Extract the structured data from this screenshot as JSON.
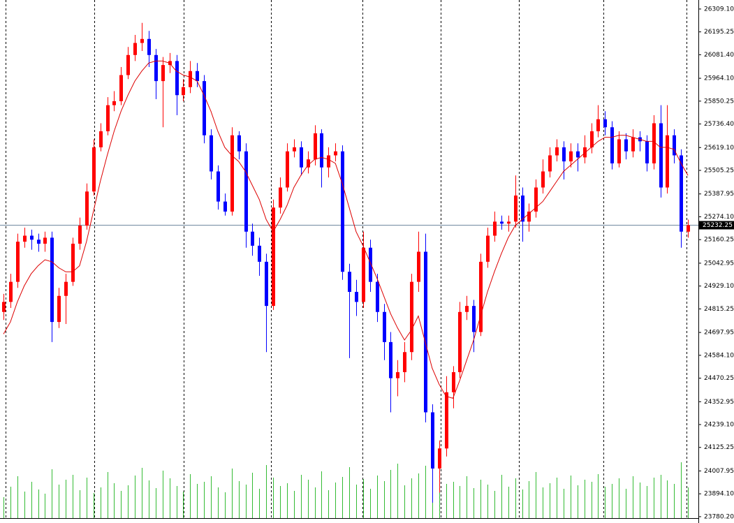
{
  "chart_data": {
    "type": "candlestick",
    "up_color": "#ff0000",
    "down_color": "#0000ff",
    "volume_color": "#33bb33",
    "ylim": [
      23773,
      26354
    ],
    "yticks": [
      {
        "value": 26309.1,
        "label": "26309.10"
      },
      26195.25,
      {
        "value": 26081.4,
        "label": "26081.40"
      },
      {
        "value": 25964.1,
        "label": "25964.10"
      },
      25850.25,
      {
        "value": 25736.4,
        "label": "25736.40"
      },
      {
        "value": 25619.1,
        "label": "25619.10"
      },
      25505.25,
      25387.95,
      {
        "value": 25274.1,
        "label": "25274.10"
      },
      25160.25,
      25042.95,
      {
        "value": 24929.1,
        "label": "24929.10"
      },
      24815.25,
      24697.95,
      {
        "value": 24584.1,
        "label": "24584.10"
      },
      24470.25,
      24352.95,
      {
        "value": 24239.1,
        "label": "24239.10"
      },
      24125.25,
      24007.95,
      {
        "value": 23894.1,
        "label": "23894.10"
      },
      {
        "value": 23780.2,
        "label": "23780.20"
      }
    ],
    "current_price": 25232.25,
    "open": [
      24800,
      24850,
      24950,
      25150,
      25180,
      25160,
      25140,
      25170,
      24750,
      24880,
      24950,
      25140,
      25230,
      25400,
      25620,
      25700,
      25830,
      25850,
      25980,
      26080,
      26140,
      26160,
      26080,
      25950,
      26030,
      26050,
      25880,
      25920,
      26000,
      25950,
      25680,
      25500,
      25350,
      25300,
      25680,
      25600,
      25200,
      25130,
      25050,
      24830,
      25320,
      25420,
      25600,
      25620,
      25520,
      25560,
      25690,
      25520,
      25580,
      25600,
      25000,
      24900,
      24850,
      25120,
      24950,
      24800,
      24650,
      24470,
      24500,
      24600,
      24950,
      25100,
      24300,
      24020,
      24120,
      24400,
      24500,
      24800,
      24830,
      24700,
      25050,
      25180,
      25250,
      25240,
      25250,
      25380,
      25250,
      25300,
      25420,
      25500,
      25580,
      25620,
      25550,
      25600,
      25570,
      25620,
      25700,
      25760,
      25720,
      25540,
      25660,
      25600,
      25670,
      25650,
      25540,
      25740,
      25420,
      25680,
      25580,
      25200
    ],
    "high": [
      24890,
      24990,
      25190,
      25220,
      25210,
      25190,
      25200,
      25200,
      24920,
      24990,
      25170,
      25270,
      25440,
      25660,
      25740,
      25870,
      25900,
      26020,
      26120,
      26180,
      26240,
      26200,
      26110,
      26070,
      26090,
      26080,
      25960,
      26050,
      26040,
      25980,
      25710,
      25530,
      25390,
      25720,
      25700,
      25640,
      25240,
      25170,
      25090,
      25360,
      25470,
      25640,
      25660,
      25650,
      25600,
      25730,
      25710,
      25620,
      25640,
      25630,
      25040,
      24960,
      25200,
      25160,
      24990,
      24840,
      24700,
      24560,
      24650,
      24990,
      25200,
      25190,
      24340,
      24160,
      24480,
      24530,
      24850,
      24880,
      24860,
      25090,
      25220,
      25300,
      25280,
      25280,
      25480,
      25420,
      25340,
      25460,
      25560,
      25620,
      25660,
      25650,
      25640,
      25640,
      25680,
      25740,
      25830,
      25800,
      25750,
      25700,
      25690,
      25710,
      25700,
      25680,
      25780,
      25830,
      25830,
      25710,
      25610,
      25260
    ],
    "low": [
      24760,
      24820,
      24920,
      25120,
      25110,
      25100,
      25100,
      24650,
      24720,
      24740,
      24930,
      25110,
      25210,
      25380,
      25600,
      25680,
      25800,
      25830,
      25960,
      26050,
      26100,
      26020,
      25860,
      25720,
      25990,
      25780,
      25850,
      25890,
      25920,
      25640,
      25460,
      25310,
      25280,
      25280,
      25560,
      25120,
      25080,
      24980,
      24600,
      24810,
      25290,
      25400,
      25570,
      25480,
      25490,
      25530,
      25420,
      25470,
      25550,
      24960,
      24570,
      24780,
      24820,
      24900,
      24750,
      24560,
      24300,
      24380,
      24450,
      24560,
      24900,
      24250,
      23850,
      23900,
      24080,
      24320,
      24470,
      24760,
      24600,
      24680,
      25020,
      25150,
      25210,
      25200,
      25220,
      25150,
      25200,
      25270,
      25390,
      25470,
      25550,
      25460,
      25520,
      25500,
      25540,
      25590,
      25670,
      25680,
      25510,
      25520,
      25560,
      25570,
      25600,
      25500,
      25510,
      25370,
      25390,
      25540,
      25120,
      25170
    ],
    "close": [
      24850,
      24950,
      25150,
      25180,
      25160,
      25140,
      25170,
      24750,
      24880,
      24950,
      25140,
      25230,
      25400,
      25620,
      25700,
      25830,
      25850,
      25980,
      26080,
      26140,
      26160,
      26080,
      25950,
      26030,
      26050,
      25880,
      25920,
      26000,
      25950,
      25680,
      25500,
      25350,
      25300,
      25680,
      25600,
      25200,
      25130,
      25050,
      24830,
      25320,
      25420,
      25600,
      25620,
      25520,
      25560,
      25690,
      25520,
      25580,
      25600,
      25000,
      24900,
      24850,
      25120,
      24950,
      24800,
      24650,
      24470,
      24500,
      24600,
      24950,
      25100,
      24300,
      24020,
      24120,
      24400,
      24500,
      24800,
      24830,
      24700,
      25050,
      25180,
      25250,
      25240,
      25250,
      25380,
      25250,
      25300,
      25420,
      25500,
      25580,
      25620,
      25550,
      25600,
      25570,
      25620,
      25700,
      25760,
      25720,
      25540,
      25660,
      25600,
      25670,
      25650,
      25540,
      25740,
      25420,
      25680,
      25580,
      25200,
      25232.25
    ],
    "volume": [
      30,
      45,
      60,
      38,
      52,
      41,
      35,
      70,
      48,
      55,
      62,
      40,
      58,
      36,
      44,
      66,
      50,
      39,
      47,
      61,
      72,
      54,
      43,
      68,
      57,
      46,
      38,
      63,
      49,
      52,
      60,
      44,
      37,
      71,
      53,
      48,
      65,
      42,
      76,
      58,
      46,
      50,
      39,
      62,
      55,
      44,
      67,
      40,
      51,
      59,
      73,
      48,
      56,
      42,
      61,
      53,
      69,
      78,
      47,
      57,
      64,
      75,
      70,
      58,
      49,
      52,
      46,
      60,
      43,
      55,
      48,
      39,
      62,
      45,
      57,
      41,
      53,
      66,
      44,
      50,
      58,
      42,
      61,
      47,
      55,
      52,
      63,
      45,
      49,
      57,
      42,
      60,
      51,
      46,
      58,
      62,
      54,
      49,
      80,
      44
    ],
    "ma": {
      "color": "#dd0000",
      "values": [
        24690,
        24750,
        24850,
        24930,
        24990,
        25030,
        25060,
        25050,
        25020,
        25000,
        25000,
        25030,
        25150,
        25300,
        25450,
        25580,
        25700,
        25800,
        25880,
        25950,
        26000,
        26040,
        26050,
        26050,
        26040,
        26000,
        25980,
        25970,
        25950,
        25880,
        25800,
        25700,
        25620,
        25580,
        25550,
        25500,
        25430,
        25360,
        25260,
        25200,
        25260,
        25330,
        25420,
        25480,
        25530,
        25560,
        25570,
        25560,
        25540,
        25440,
        25320,
        25200,
        25130,
        25050,
        24970,
        24880,
        24790,
        24720,
        24660,
        24710,
        24780,
        24650,
        24520,
        24440,
        24380,
        24370,
        24460,
        24560,
        24660,
        24780,
        24900,
        25000,
        25090,
        25170,
        25230,
        25260,
        25290,
        25320,
        25350,
        25400,
        25450,
        25500,
        25530,
        25560,
        25590,
        25620,
        25650,
        25670,
        25670,
        25680,
        25680,
        25670,
        25660,
        25650,
        25650,
        25620,
        25620,
        25610,
        25540,
        25480
      ]
    }
  }
}
